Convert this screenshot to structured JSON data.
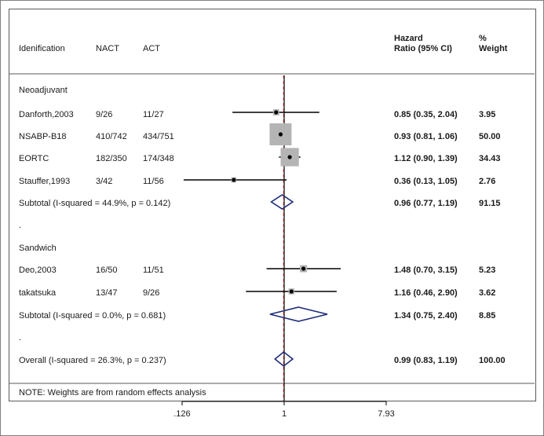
{
  "chart_data": {
    "type": "forest",
    "headers": {
      "study": "Idenification",
      "nact": "NACT",
      "act": "ACT",
      "hr": [
        "Hazard",
        "Ratio (95% CI)"
      ],
      "weight": [
        "%",
        "Weight"
      ]
    },
    "x_scale": "log",
    "x_ticks": [
      {
        "value": 0.126,
        "label": ".126"
      },
      {
        "value": 1,
        "label": "1"
      },
      {
        "value": 7.93,
        "label": "7.93"
      }
    ],
    "groups": [
      {
        "name": "Neoadjuvant",
        "studies": [
          {
            "name": "Danforth,2003",
            "nact": "9/26",
            "act": "11/27",
            "hr": 0.85,
            "lo": 0.35,
            "hi": 2.04,
            "hr_text": "0.85 (0.35, 2.04)",
            "weight": "3.95"
          },
          {
            "name": "NSABP-B18",
            "nact": "410/742",
            "act": "434/751",
            "hr": 0.93,
            "lo": 0.81,
            "hi": 1.06,
            "hr_text": "0.93 (0.81, 1.06)",
            "weight": "50.00"
          },
          {
            "name": "EORTC",
            "nact": "182/350",
            "act": "174/348",
            "hr": 1.12,
            "lo": 0.9,
            "hi": 1.39,
            "hr_text": "1.12 (0.90, 1.39)",
            "weight": "34.43"
          },
          {
            "name": "Stauffer,1993",
            "nact": "3/42",
            "act": "11/56",
            "hr": 0.36,
            "lo": 0.13,
            "hi": 1.05,
            "hr_text": "0.36 (0.13, 1.05)",
            "weight": "2.76"
          }
        ],
        "subtotal": {
          "label": "Subtotal  (I-squared = 44.9%, p = 0.142)",
          "hr": 0.96,
          "lo": 0.77,
          "hi": 1.19,
          "hr_text": "0.96 (0.77, 1.19)",
          "weight": "91.15"
        }
      },
      {
        "name": "Sandwich",
        "studies": [
          {
            "name": "Deo,2003",
            "nact": "16/50",
            "act": "11/51",
            "hr": 1.48,
            "lo": 0.7,
            "hi": 3.15,
            "hr_text": "1.48 (0.70, 3.15)",
            "weight": "5.23"
          },
          {
            "name": "takatsuka",
            "nact": "13/47",
            "act": "9/26",
            "hr": 1.16,
            "lo": 0.46,
            "hi": 2.9,
            "hr_text": "1.16 (0.46, 2.90)",
            "weight": "3.62"
          }
        ],
        "subtotal": {
          "label": "Subtotal  (I-squared = 0.0%, p = 0.681)",
          "hr": 1.34,
          "lo": 0.75,
          "hi": 2.4,
          "hr_text": "1.34 (0.75, 2.40)",
          "weight": "8.85"
        }
      }
    ],
    "overall": {
      "label": "Overall  (I-squared = 26.3%, p = 0.237)",
      "hr": 0.99,
      "lo": 0.83,
      "hi": 1.19,
      "hr_text": "0.99 (0.83, 1.19)",
      "weight": "100.00"
    },
    "separators": [
      ".",
      "."
    ],
    "note": "NOTE: Weights are from random effects analysis",
    "colors": {
      "marker": "#b4b4b4",
      "line": "#000000",
      "ref_line": "#000000",
      "overall_line": "#8b1a1a",
      "diamond": "#1f2d7a"
    }
  }
}
